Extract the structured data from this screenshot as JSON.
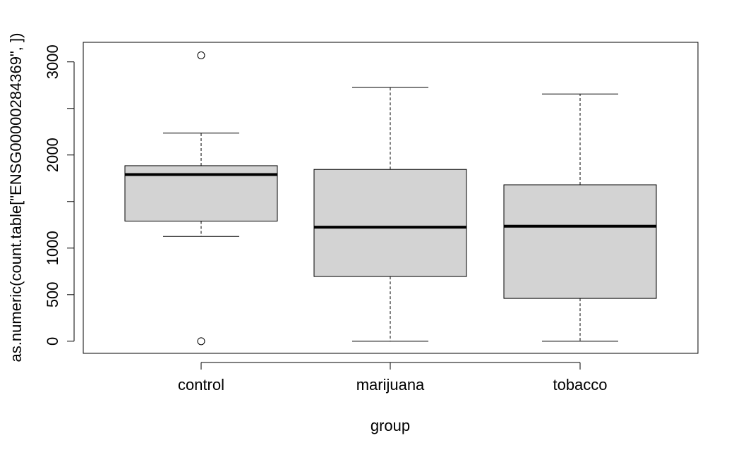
{
  "chart_data": {
    "type": "boxplot",
    "title": "",
    "xlabel": "group",
    "ylabel": "as.numeric(count.table[\"ENSG00000284369\", ])",
    "categories": [
      "control",
      "marijuana",
      "tobacco"
    ],
    "ylim": [
      -130,
      3210
    ],
    "yticks": [
      0,
      500,
      1000,
      1500,
      2000,
      2500,
      3000
    ],
    "ytick_labels": [
      "0",
      "500",
      "1000",
      "",
      "2000",
      "",
      "3000"
    ],
    "grid": false,
    "legend": "none",
    "box_fill": "#d3d3d3",
    "boxes": [
      {
        "name": "control",
        "whisker_low": 1125,
        "q1": 1290,
        "median": 1790,
        "q3": 1885,
        "whisker_high": 2235,
        "outliers": [
          3070,
          0
        ]
      },
      {
        "name": "marijuana",
        "whisker_low": 0,
        "q1": 695,
        "median": 1225,
        "q3": 1845,
        "whisker_high": 2725,
        "outliers": []
      },
      {
        "name": "tobacco",
        "whisker_low": 0,
        "q1": 460,
        "median": 1235,
        "q3": 1680,
        "whisker_high": 2655,
        "outliers": []
      }
    ]
  }
}
